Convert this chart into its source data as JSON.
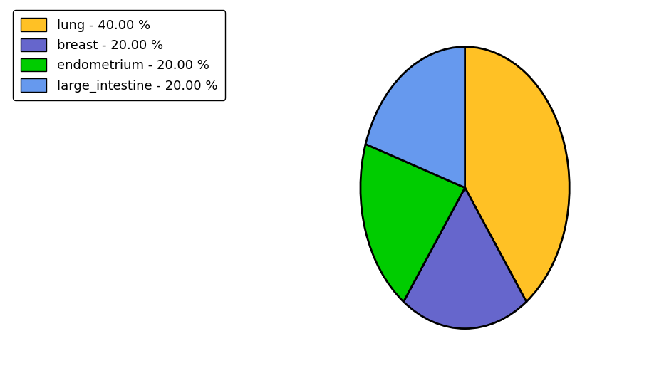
{
  "labels": [
    "lung",
    "breast",
    "endometrium",
    "large_intestine"
  ],
  "sizes": [
    40,
    20,
    20,
    20
  ],
  "colors": [
    "#FFC125",
    "#6666CC",
    "#00CC00",
    "#6699EE"
  ],
  "legend_labels": [
    "lung - 40.00 %",
    "breast - 20.00 %",
    "endometrium - 20.00 %",
    "large_intestine - 20.00 %"
  ],
  "startangle": 90,
  "figsize": [
    9.39,
    5.38
  ],
  "dpi": 100,
  "background_color": "#ffffff",
  "edgecolor": "#000000",
  "linewidth": 2.0,
  "legend_fontsize": 13,
  "counterclock": false
}
